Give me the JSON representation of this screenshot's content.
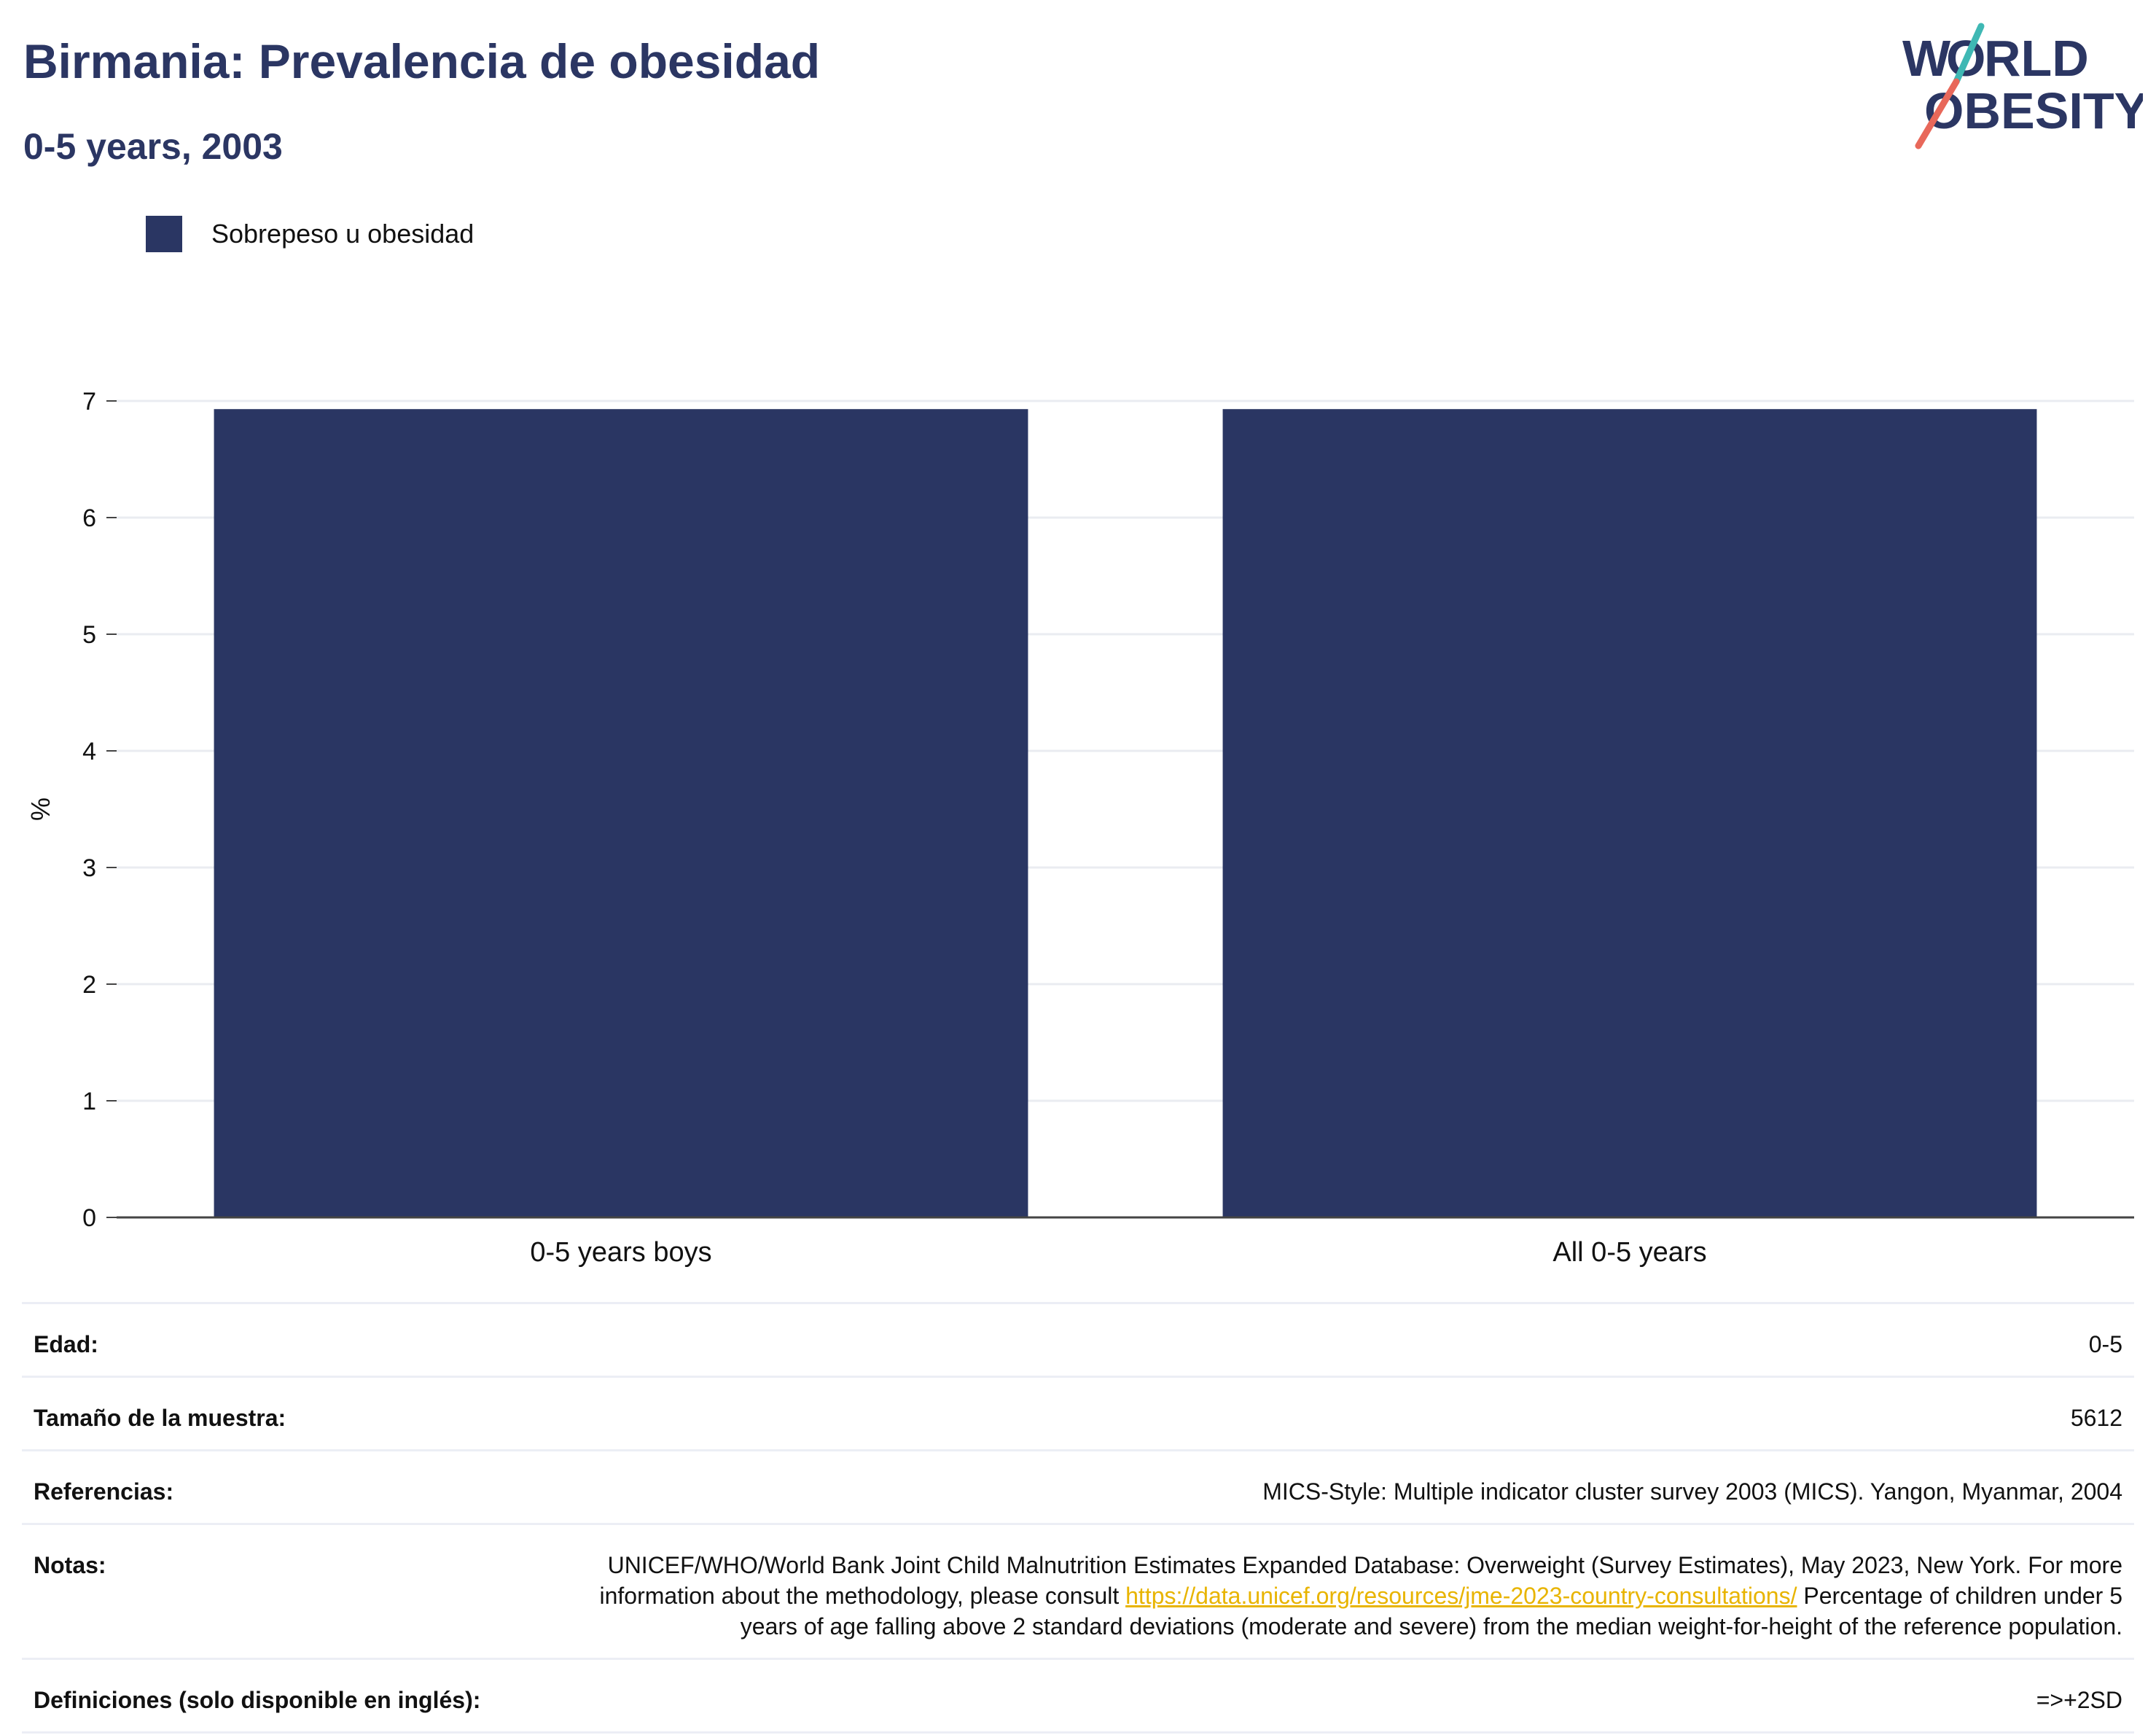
{
  "header": {
    "title": "Birmania: Prevalencia de obesidad",
    "subtitle": "0-5 years, 2003"
  },
  "logo": {
    "line1": "WORLD",
    "line2": "OBESITY",
    "colors": {
      "text": "#2b3663",
      "slash_top": "#3fb8b4",
      "slash_bottom": "#e8685a"
    }
  },
  "legend": {
    "items": [
      {
        "label": "Sobrepeso u obesidad",
        "color": "#2a3663"
      }
    ]
  },
  "chart_data": {
    "type": "bar",
    "categories": [
      "0-5 years boys",
      "All 0-5 years"
    ],
    "series": [
      {
        "name": "Sobrepeso u obesidad",
        "values": [
          6.93,
          6.93
        ],
        "color": "#2a3663"
      }
    ],
    "ylabel": "%",
    "xlabel": "",
    "ylim": [
      0,
      7
    ],
    "yticks": [
      "0",
      "1",
      "2",
      "3",
      "4",
      "5",
      "6",
      "7"
    ],
    "grid": true,
    "legend_position": "top-left"
  },
  "metadata": {
    "age": {
      "label": "Edad:",
      "value": "0-5"
    },
    "sample": {
      "label": "Tamaño de la muestra:",
      "value": "5612"
    },
    "references": {
      "label": "Referencias:",
      "value": "MICS-Style: Multiple indicator cluster survey 2003 (MICS). Yangon, Myanmar, 2004"
    },
    "notes": {
      "label": "Notas:",
      "text_before": "UNICEF/WHO/World Bank Joint Child Malnutrition Estimates Expanded Database: Overweight (Survey Estimates), May 2023, New York. For more information about the methodology, please consult ",
      "link": "https://data.unicef.org/resources/jme-2023-country-consultations/",
      "text_after": " Percentage of children under 5 years of age falling above 2 standard deviations (moderate and severe) from the median weight-for-height of the reference population."
    },
    "definitions": {
      "label": "Definiciones (solo disponible en inglés):",
      "value": "=>+2SD"
    }
  }
}
